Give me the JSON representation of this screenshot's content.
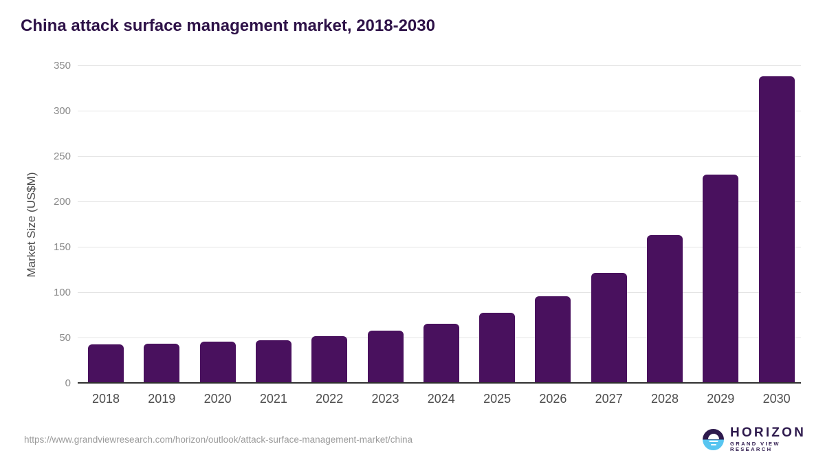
{
  "chart_data": {
    "type": "bar",
    "title": "China attack surface management market, 2018-2030",
    "categories": [
      "2018",
      "2019",
      "2020",
      "2021",
      "2022",
      "2023",
      "2024",
      "2025",
      "2026",
      "2027",
      "2028",
      "2029",
      "2030"
    ],
    "values": [
      43,
      44,
      46,
      48,
      52,
      58,
      66,
      78,
      96,
      122,
      164,
      230,
      339
    ],
    "xlabel": "",
    "ylabel": "Market Size (US$M)",
    "ylim": [
      0,
      350
    ],
    "yticks": [
      0,
      50,
      100,
      150,
      200,
      250,
      300,
      350
    ],
    "grid": true,
    "legend": false,
    "bar_color": "#49115e"
  },
  "footer": {
    "source_url": "https://www.grandviewresearch.com/horizon/outlook/attack-surface-management-market/china"
  },
  "logo": {
    "name": "HORIZON",
    "subname": "GRAND VIEW RESEARCH"
  },
  "colors": {
    "bar": "#49115e",
    "title_text": "#2e1248",
    "logo_purple": "#2e1a4d",
    "logo_blue": "#58c5f0",
    "gridline": "#e4e4e4",
    "axis_line": "#2f2f2f",
    "y_tick_text": "#8a8a8a",
    "x_tick_text": "#4d4d4d",
    "url_text": "#9b9b9b"
  }
}
